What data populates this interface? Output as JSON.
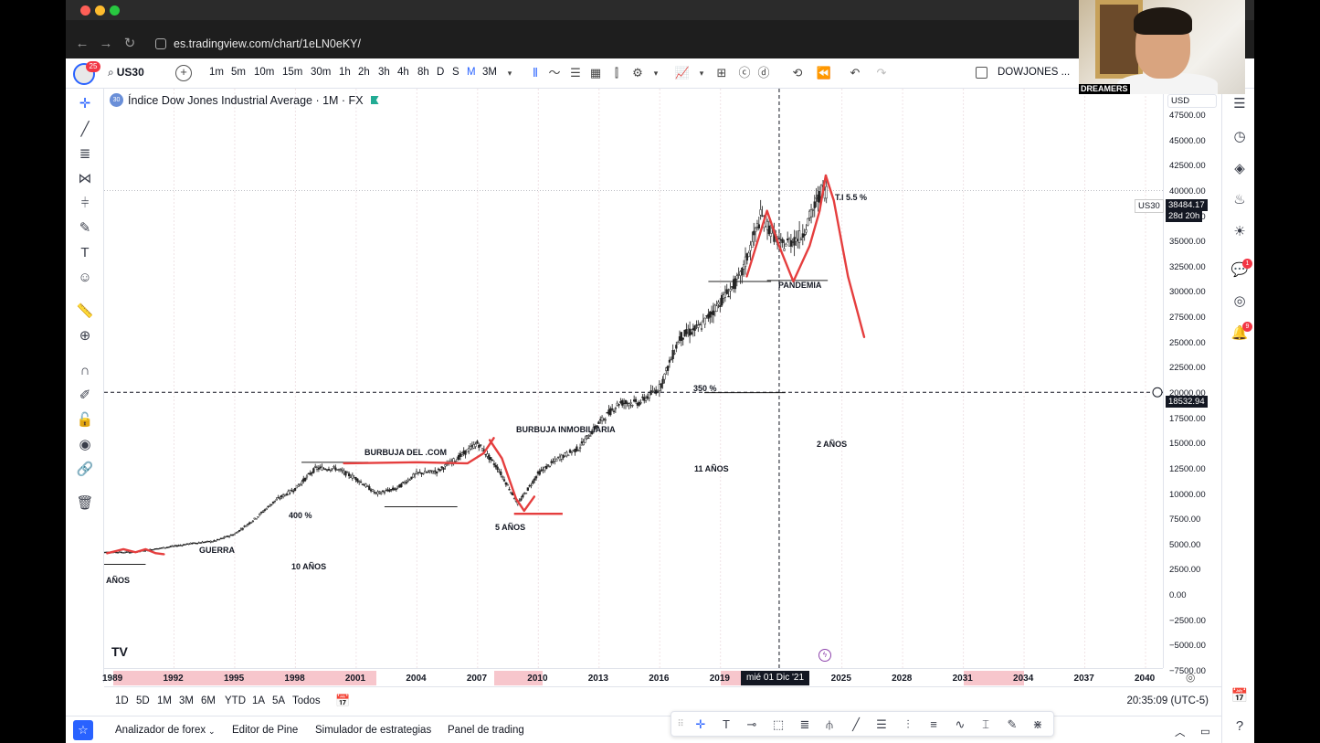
{
  "browser": {
    "url": "es.tradingview.com/chart/1eLN0eKY/"
  },
  "topbar": {
    "notifications_count": "25",
    "symbol": "US30",
    "intervals": [
      "1m",
      "5m",
      "10m",
      "15m",
      "30m",
      "1h",
      "2h",
      "3h",
      "4h",
      "8h",
      "D",
      "S",
      "M",
      "3M"
    ],
    "active_interval": "M",
    "layout_name": "DOWJONES ..."
  },
  "legend": {
    "badge": "30",
    "title": "Índice Dow Jones Industrial Average · 1M · FX"
  },
  "annotations": {
    "guerra": "GUERRA",
    "anos_left": "AÑOS",
    "pct_400": "400 %",
    "diez_anos": "10 AÑOS",
    "burbuja_com": "BURBUJA DEL .COM",
    "cinco_anos": "5 AÑOS",
    "burbuja_inmo": "BURBUJA INMOBILIARIA",
    "once_anos": "11 AÑOS",
    "pct_350": "350 %",
    "pandemia": "PANDEMIA",
    "dos_anos": "2 AÑOS",
    "ti": "T.I 5.5 %"
  },
  "price_scale": {
    "currency": "USD",
    "labels": [
      "47500.00",
      "45000.00",
      "42500.00",
      "40000.00",
      "37500.00",
      "35000.00",
      "32500.00",
      "30000.00",
      "27500.00",
      "25000.00",
      "22500.00",
      "20000.00",
      "17500.00",
      "15000.00",
      "12500.00",
      "10000.00",
      "7500.00",
      "5000.00",
      "2500.00",
      "0.00",
      "−2500.00",
      "−5000.00",
      "−7500.00"
    ],
    "symbol_tag": "US30",
    "last_price": "38484.17",
    "countdown": "28d 20h",
    "crosshair_price": "18532.94"
  },
  "time_scale": {
    "labels": [
      "1989",
      "1992",
      "1995",
      "1998",
      "2001",
      "2004",
      "2007",
      "2010",
      "2013",
      "2016",
      "2019",
      "2025",
      "2028",
      "2031",
      "2034",
      "2037",
      "2040"
    ],
    "cursor_date": "mié 01 Dic '21"
  },
  "range_bar": {
    "ranges": [
      "1D",
      "5D",
      "1M",
      "3M",
      "6M",
      "YTD",
      "1A",
      "5A",
      "Todos"
    ],
    "clock": "20:35:09 (UTC-5)"
  },
  "panels": {
    "items": [
      "Analizador de forex",
      "Editor de Pine",
      "Simulador de estrategias",
      "Panel de trading"
    ]
  },
  "right_panel": {
    "chat_badge": "1",
    "alerts_badge": "9"
  },
  "webcam": {
    "label": "DREAMERS"
  },
  "chart_data": {
    "type": "line",
    "symbol": "US30",
    "timeframe": "1M",
    "ylim": [
      -7500,
      47500
    ],
    "xlim": [
      1989,
      2041
    ],
    "x": [
      1989,
      1990,
      1991,
      1992,
      1993,
      1994,
      1995,
      1996,
      1997,
      1998,
      1999,
      2000,
      2001,
      2002,
      2003,
      2004,
      2005,
      2006,
      2007,
      2008,
      2009,
      2010,
      2011,
      2012,
      2013,
      2014,
      2015,
      2016,
      2017,
      2018,
      2019,
      2020,
      2021,
      2022,
      2023,
      2024
    ],
    "values": [
      2700,
      2700,
      3000,
      3300,
      3600,
      3800,
      4500,
      6000,
      7800,
      9000,
      11000,
      11000,
      10000,
      8500,
      9000,
      10500,
      10700,
      12000,
      13500,
      11000,
      7500,
      10500,
      12000,
      13000,
      15500,
      17500,
      17500,
      19000,
      24000,
      25000,
      27500,
      30000,
      36000,
      33000,
      34000,
      38500
    ]
  }
}
